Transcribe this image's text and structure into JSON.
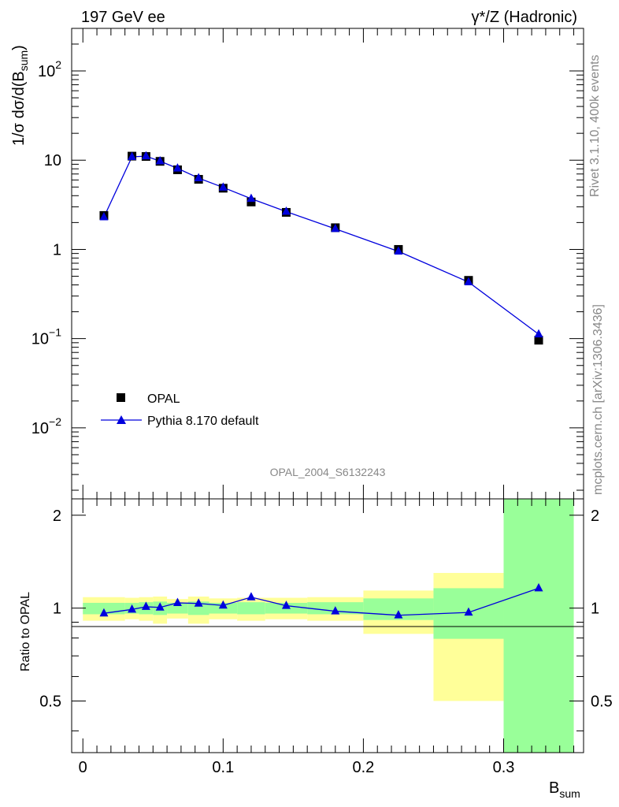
{
  "header": {
    "left": "197 GeV ee",
    "right": "γ*/Z (Hadronic)"
  },
  "side_labels": {
    "rivet": "Rivet 3.1.10,  400k events",
    "mcplots": "mcplots.cern.ch [arXiv:1306.3436]"
  },
  "watermark": "OPAL_2004_S6132243",
  "colors": {
    "mc": "#0000dd",
    "data": "#000000",
    "green_band": "#99ff99",
    "yellow_band": "#ffff99",
    "grey_text": "#888888"
  },
  "chart_data": [
    {
      "type": "scatter",
      "panel": "main",
      "yscale": "log",
      "ylabel": "1/σ dσ/d(B_sum)",
      "ylim": [
        0.0016,
        300
      ],
      "yticks": [
        {
          "value": 0.01,
          "base": "10",
          "exp": "−2"
        },
        {
          "value": 0.1,
          "base": "10",
          "exp": "−1"
        },
        {
          "value": 1,
          "base": "1",
          "exp": ""
        },
        {
          "value": 10,
          "base": "10",
          "exp": ""
        },
        {
          "value": 100,
          "base": "10",
          "exp": "2"
        }
      ],
      "legend": {
        "position": "bottom-left",
        "entries": [
          "OPAL",
          "Pythia 8.170 default"
        ]
      },
      "series": [
        {
          "name": "OPAL",
          "marker": "square",
          "x": [
            0.015,
            0.035,
            0.045,
            0.055,
            0.0675,
            0.0825,
            0.1,
            0.12,
            0.145,
            0.18,
            0.225,
            0.275,
            0.325
          ],
          "y": [
            2.4,
            11.1,
            11.0,
            9.7,
            7.8,
            6.1,
            4.85,
            3.4,
            2.6,
            1.75,
            1.0,
            0.45,
            0.096
          ]
        },
        {
          "name": "Pythia 8.170 default",
          "marker": "triangle",
          "x": [
            0.015,
            0.035,
            0.045,
            0.055,
            0.0675,
            0.0825,
            0.1,
            0.12,
            0.145,
            0.18,
            0.225,
            0.275,
            0.325
          ],
          "y": [
            2.3,
            10.9,
            11.1,
            9.75,
            8.1,
            6.3,
            4.95,
            3.7,
            2.65,
            1.7,
            0.95,
            0.43,
            0.112
          ]
        }
      ]
    },
    {
      "type": "line",
      "panel": "ratio",
      "ylabel": "Ratio to OPAL",
      "xlabel": "B_sum",
      "xlim": [
        -0.008,
        0.357
      ],
      "ylim": [
        0.34,
        2.26
      ],
      "xticks": [
        0,
        0.1,
        0.2,
        0.3
      ],
      "xtick_labels": [
        "0",
        "0.1",
        "0.2",
        "0.3"
      ],
      "yticks": [
        0.5,
        1,
        2
      ],
      "ytick_labels": [
        "0.5",
        "1",
        "2"
      ],
      "bands": [
        {
          "x0": 0.0,
          "x1": 0.03,
          "g_lo": 0.955,
          "g_hi": 1.04,
          "y_lo": 0.91,
          "y_hi": 1.085
        },
        {
          "x0": 0.03,
          "x1": 0.04,
          "g_lo": 0.96,
          "g_hi": 1.04,
          "y_lo": 0.92,
          "y_hi": 1.08
        },
        {
          "x0": 0.04,
          "x1": 0.05,
          "g_lo": 0.955,
          "g_hi": 1.045,
          "y_lo": 0.91,
          "y_hi": 1.085
        },
        {
          "x0": 0.05,
          "x1": 0.06,
          "g_lo": 0.95,
          "g_hi": 1.05,
          "y_lo": 0.89,
          "y_hi": 1.09
        },
        {
          "x0": 0.06,
          "x1": 0.075,
          "g_lo": 0.96,
          "g_hi": 1.04,
          "y_lo": 0.925,
          "y_hi": 1.07
        },
        {
          "x0": 0.075,
          "x1": 0.09,
          "g_lo": 0.95,
          "g_hi": 1.05,
          "y_lo": 0.89,
          "y_hi": 1.09
        },
        {
          "x0": 0.09,
          "x1": 0.11,
          "g_lo": 0.96,
          "g_hi": 1.04,
          "y_lo": 0.92,
          "y_hi": 1.075
        },
        {
          "x0": 0.11,
          "x1": 0.13,
          "g_lo": 0.955,
          "g_hi": 1.045,
          "y_lo": 0.91,
          "y_hi": 1.08
        },
        {
          "x0": 0.13,
          "x1": 0.16,
          "g_lo": 0.96,
          "g_hi": 1.04,
          "y_lo": 0.92,
          "y_hi": 1.08
        },
        {
          "x0": 0.16,
          "x1": 0.2,
          "g_lo": 0.955,
          "g_hi": 1.045,
          "y_lo": 0.91,
          "y_hi": 1.085
        },
        {
          "x0": 0.2,
          "x1": 0.25,
          "g_lo": 0.915,
          "g_hi": 1.075,
          "y_lo": 0.825,
          "y_hi": 1.14
        },
        {
          "x0": 0.25,
          "x1": 0.3,
          "g_lo": 0.795,
          "g_hi": 1.16,
          "y_lo": 0.5,
          "y_hi": 1.3
        },
        {
          "x0": 0.3,
          "x1": 0.35,
          "g_lo": 0.34,
          "g_hi": 2.26,
          "y_lo": 0.34,
          "y_hi": 2.26
        }
      ],
      "series": [
        {
          "name": "Pythia 8.170 default / OPAL",
          "x": [
            0.015,
            0.035,
            0.045,
            0.055,
            0.0675,
            0.0825,
            0.1,
            0.12,
            0.145,
            0.18,
            0.225,
            0.275,
            0.325
          ],
          "y": [
            0.962,
            0.99,
            1.01,
            1.005,
            1.04,
            1.035,
            1.02,
            1.085,
            1.018,
            0.977,
            0.948,
            0.968,
            1.16
          ]
        }
      ]
    }
  ]
}
